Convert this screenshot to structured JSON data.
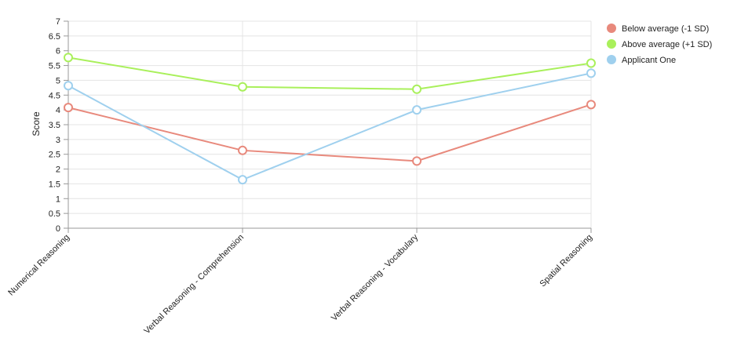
{
  "chart_data": {
    "type": "line",
    "title": "",
    "xlabel": "",
    "ylabel": "Score",
    "ylim": [
      0,
      7
    ],
    "y_ticks": [
      "0",
      "0.5",
      "1",
      "1.5",
      "2",
      "2.5",
      "3",
      "3.5",
      "4",
      "4.5",
      "5",
      "5.5",
      "6",
      "6.5",
      "7"
    ],
    "categories": [
      "Numerical Reasoning",
      "Verbal Reasoning - Comprehension",
      "Verbal Reasoning - Vocabulary",
      "Spatial Reasoning"
    ],
    "grid": true,
    "legend_position": "top-right",
    "series": [
      {
        "name": "Below average (-1 SD)",
        "color": "#e8897c",
        "values": [
          4.08,
          2.63,
          2.27,
          4.18
        ]
      },
      {
        "name": "Above average (+1 SD)",
        "color": "#a9f05b",
        "values": [
          5.77,
          4.78,
          4.7,
          5.58
        ]
      },
      {
        "name": "Applicant One",
        "color": "#9fd0ee",
        "values": [
          4.82,
          1.64,
          4.0,
          5.24
        ]
      }
    ]
  }
}
